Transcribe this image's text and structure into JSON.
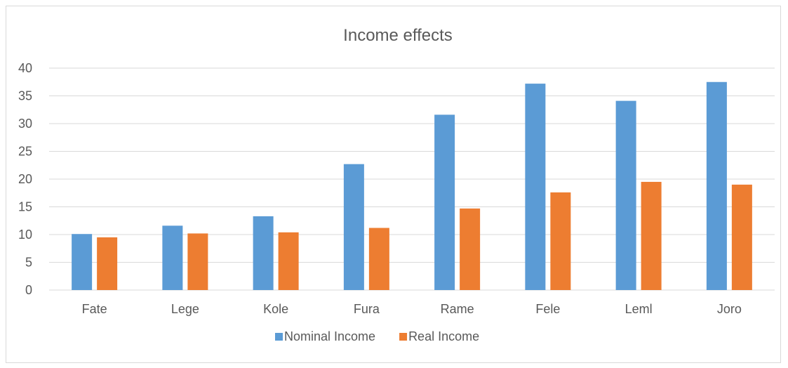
{
  "chart_data": {
    "type": "bar",
    "title": "Income effects",
    "categories": [
      "Fate",
      "Lege",
      "Kole",
      "Fura",
      "Rame",
      "Fele",
      "Leml",
      "Joro"
    ],
    "series": [
      {
        "name": "Nominal Income",
        "color": "#5b9bd5",
        "values": [
          10.1,
          11.6,
          13.3,
          22.7,
          31.6,
          37.2,
          34.1,
          37.5
        ]
      },
      {
        "name": "Real Income",
        "color": "#ed7d31",
        "values": [
          9.5,
          10.2,
          10.4,
          11.2,
          14.7,
          17.6,
          19.5,
          19.0
        ]
      }
    ],
    "ylim": [
      0,
      40
    ],
    "yticks": [
      "0",
      "5",
      "10",
      "15",
      "20",
      "25",
      "30",
      "35",
      "40"
    ],
    "grid": true,
    "legend_position": "bottom"
  }
}
